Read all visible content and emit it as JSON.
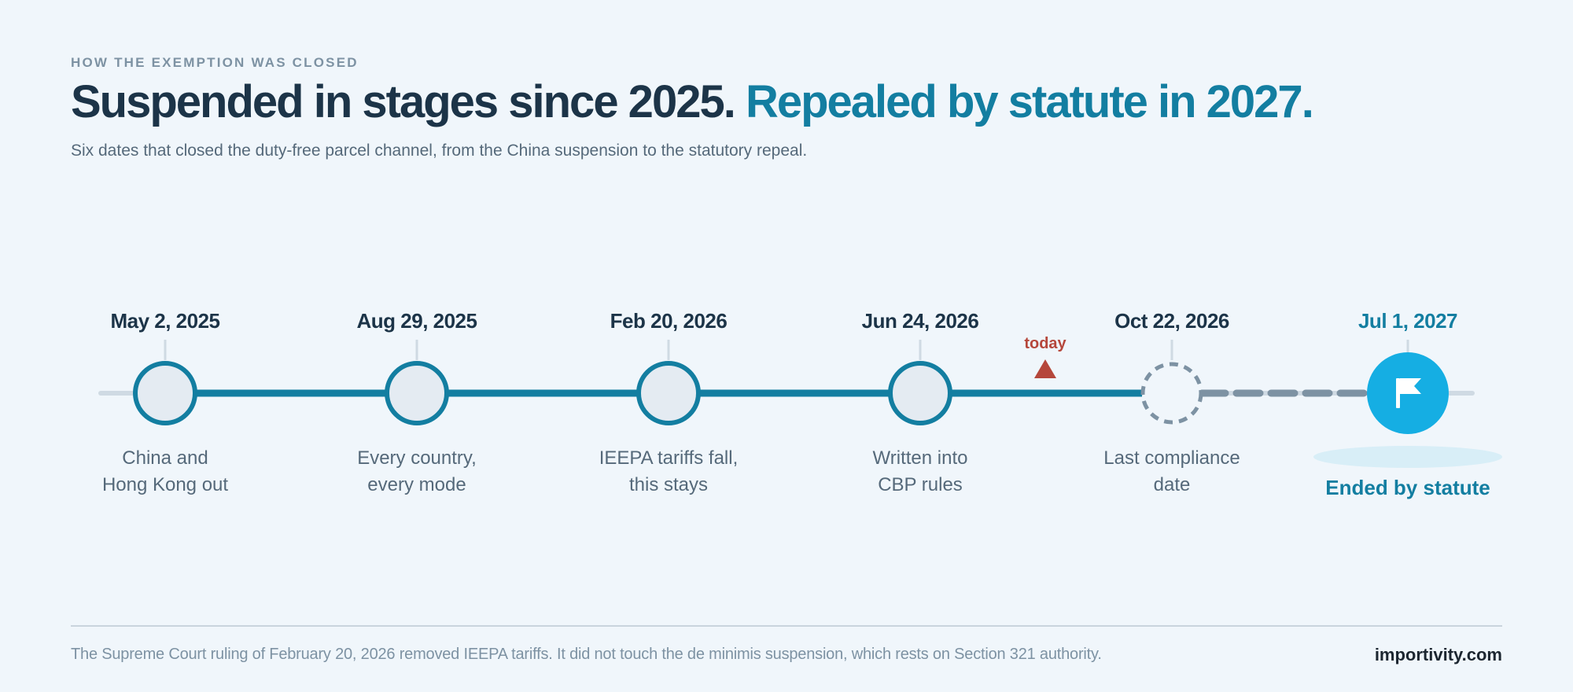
{
  "header": {
    "eyebrow": "HOW THE EXEMPTION WAS CLOSED",
    "headline_part1": "Suspended in stages since 2025.",
    "headline_part2": "Repealed by statute in 2027.",
    "subtitle": "Six dates that closed the duty-free parcel channel, from the China suspension to the statutory repeal."
  },
  "timeline": {
    "today_label": "today",
    "milestones": [
      {
        "date": "May 2, 2025",
        "desc_line1": "China and",
        "desc_line2": "Hong Kong out",
        "state": "past"
      },
      {
        "date": "Aug 29, 2025",
        "desc_line1": "Every country,",
        "desc_line2": "every mode",
        "state": "past"
      },
      {
        "date": "Feb 20, 2026",
        "desc_line1": "IEEPA tariffs fall,",
        "desc_line2": "this stays",
        "state": "past"
      },
      {
        "date": "Jun 24, 2026",
        "desc_line1": "Written into",
        "desc_line2": "CBP rules",
        "state": "past"
      },
      {
        "date": "Oct 22, 2026",
        "desc_line1": "Last compliance",
        "desc_line2": "date",
        "state": "upcoming"
      },
      {
        "date": "Jul 1, 2027",
        "desc_line1": "Ended by statute",
        "desc_line2": "",
        "state": "final",
        "icon": "flag-icon"
      }
    ]
  },
  "colors": {
    "past_line": "#137ea1",
    "future_dash": "#7d92a3",
    "final_node": "#15aee3",
    "today_marker": "#b5473b"
  },
  "footer": {
    "note": "The Supreme Court ruling of February 20, 2026 removed IEEPA tariffs. It did not touch the de minimis suspension, which rests on Section 321 authority.",
    "brand": "importivity.com"
  }
}
